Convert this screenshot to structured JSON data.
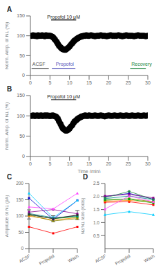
{
  "chart_data": [
    {
      "type": "scatter",
      "title": "A",
      "ylabel": "Norm. Amp. of N1 (%)",
      "xlim": [
        0,
        30
      ],
      "xticks": [
        0,
        5,
        10,
        15,
        20,
        25,
        30
      ],
      "ylim": [
        0,
        150
      ],
      "yticks": [
        0,
        50,
        100,
        150
      ],
      "series": [
        {
          "color": "#000000",
          "x": [
            0.3,
            0.7,
            1.0,
            1.3,
            1.7,
            2.0,
            2.3,
            2.7,
            3.0,
            3.3,
            3.7,
            4.0,
            4.3,
            4.7,
            5.0
          ],
          "values": [
            100,
            101,
            100,
            100,
            99,
            101,
            100,
            100,
            101,
            100,
            99,
            101,
            100,
            100,
            100
          ]
        },
        {
          "color": "#000000",
          "x": [
            5.3,
            5.7,
            6.0,
            6.3,
            6.7,
            7.0,
            7.3,
            7.7,
            8.0,
            8.3,
            8.7,
            9.0,
            9.3,
            9.7,
            10.0,
            10.3,
            10.7,
            11.0,
            11.3,
            11.7,
            12.0
          ],
          "values": [
            99,
            97,
            94,
            90,
            85,
            80,
            75,
            71,
            68,
            66,
            65,
            65,
            67,
            70,
            73,
            77,
            81,
            85,
            88,
            91,
            93
          ]
        },
        {
          "color": "#000000",
          "x": [
            12.3,
            12.7,
            13.0,
            13.3,
            13.7,
            14.0,
            14.3,
            14.7,
            15.0,
            15.5,
            16.0,
            16.5,
            17.0,
            17.5,
            18.0,
            18.5,
            19.0,
            19.5,
            20.0,
            20.5,
            21.0,
            21.5,
            22.0,
            22.5,
            23.0,
            23.5,
            24.0,
            24.5,
            25.0,
            25.5,
            26.0,
            26.5,
            27.0,
            27.5,
            28.0,
            28.5,
            29.0,
            29.5,
            30.0
          ],
          "values": [
            95,
            97,
            98,
            99,
            100,
            100,
            101,
            100,
            100,
            101,
            100,
            99,
            100,
            100,
            101,
            100,
            100,
            99,
            100,
            101,
            100,
            100,
            100,
            101,
            100,
            99,
            100,
            101,
            100,
            100,
            100,
            99,
            100,
            101,
            100,
            100,
            100,
            99,
            100
          ]
        }
      ],
      "lines": [
        {
          "x": [
            5.3,
            11.7
          ],
          "y": 140,
          "color": "#333333"
        },
        {
          "x": [
            0.3,
            4.7
          ],
          "y": 18,
          "color": "#555555"
        },
        {
          "x": [
            5.5,
            11.5
          ],
          "y": 18,
          "color": "#5555bb"
        },
        {
          "x": [
            25.5,
            29.5
          ],
          "y": 18,
          "color": "#228844"
        }
      ],
      "annotations": [
        {
          "text": "Propofol 10 μM",
          "x": 8.5,
          "y": 143,
          "color": "#222222",
          "align": "center"
        },
        {
          "text": "ACSF",
          "x": 0.5,
          "y": 25,
          "color": "#555555",
          "align": "left"
        },
        {
          "text": "Propofol",
          "x": 6.5,
          "y": 25,
          "color": "#5555bb",
          "align": "left"
        },
        {
          "text": "Recovery",
          "x": 25.8,
          "y": 25,
          "color": "#228844",
          "align": "left"
        }
      ]
    },
    {
      "type": "scatter",
      "title": "B",
      "ylabel": "Norm. Amp. of N1 (%)",
      "xlabel": "Time (min)",
      "xlim": [
        0,
        30
      ],
      "xticks": [
        0,
        5,
        10,
        15,
        20,
        25,
        30
      ],
      "ylim": [
        0,
        150
      ],
      "yticks": [
        0,
        50,
        100,
        150
      ],
      "series": [
        {
          "color": "#000000",
          "x": [
            0.3,
            0.7,
            1.0,
            1.3,
            1.7,
            2.0,
            2.3,
            2.7,
            3.0,
            3.3,
            3.7,
            4.0,
            4.3,
            4.7,
            5.0,
            5.3,
            5.7,
            6.0,
            6.3,
            6.7,
            7.0,
            7.3,
            7.7,
            8.0,
            8.3,
            8.7,
            9.0,
            9.3,
            9.7,
            10.0,
            10.3,
            10.7,
            11.0,
            11.3,
            11.7,
            12.0,
            12.3,
            12.7,
            13.0,
            13.3,
            13.7,
            14.0,
            14.3,
            14.7,
            15.0,
            15.5,
            16.0,
            16.5,
            17.0,
            17.5,
            18.0,
            18.5,
            19.0,
            19.5,
            20.0,
            20.5,
            21.0,
            21.5,
            22.0,
            22.5,
            23.0,
            23.5,
            24.0,
            24.5,
            25.0,
            25.5,
            26.0,
            26.5,
            27.0,
            27.5,
            28.0,
            28.5,
            29.0,
            29.5,
            30.0
          ],
          "values": [
            100,
            101,
            100,
            100,
            101,
            100,
            100,
            101,
            100,
            100,
            101,
            100,
            101,
            100,
            100,
            100,
            101,
            100,
            99,
            97,
            93,
            87,
            80,
            74,
            69,
            66,
            64,
            64,
            66,
            69,
            73,
            77,
            82,
            86,
            89,
            92,
            94,
            96,
            98,
            99,
            100,
            101,
            100,
            100,
            101,
            100,
            100,
            101,
            100,
            100,
            101,
            100,
            99,
            100,
            101,
            100,
            100,
            101,
            100,
            100,
            101,
            100,
            100,
            101,
            100,
            100,
            101,
            100,
            100,
            101,
            100,
            100,
            101,
            100,
            101
          ]
        }
      ],
      "lines": [
        {
          "x": [
            5.3,
            11.7
          ],
          "y": 140,
          "color": "#333333"
        }
      ],
      "annotations": [
        {
          "text": "Propofol 10 μM",
          "x": 8.5,
          "y": 143,
          "color": "#222222",
          "align": "center"
        }
      ]
    },
    {
      "type": "line",
      "title": "C",
      "ylabel": "Amplitude of N1 (pA)",
      "categories": [
        "ACSF",
        "Propofol",
        "Wash"
      ],
      "ylim": [
        0,
        200
      ],
      "yticks": [
        0,
        50,
        100,
        150,
        200
      ],
      "series": [
        {
          "color": "#ff0000",
          "marker": "square",
          "values": [
            67,
            47,
            67
          ]
        },
        {
          "color": "#ff8800",
          "marker": "square",
          "values": [
            100,
            88,
            95
          ]
        },
        {
          "color": "#888800",
          "marker": "square",
          "values": [
            103,
            85,
            92
          ]
        },
        {
          "color": "#00aa00",
          "marker": "square",
          "values": [
            105,
            92,
            98
          ]
        },
        {
          "color": "#008888",
          "marker": "square",
          "values": [
            108,
            95,
            100
          ]
        },
        {
          "color": "#0000cc",
          "marker": "square",
          "values": [
            155,
            90,
            148
          ]
        },
        {
          "color": "#880088",
          "marker": "square",
          "values": [
            112,
            120,
            107
          ]
        },
        {
          "color": "#ff44ff",
          "marker": "triangle",
          "values": [
            128,
            122,
            170
          ]
        },
        {
          "color": "#00ccff",
          "marker": "triangle",
          "values": [
            170,
            95,
            148
          ]
        },
        {
          "color": "#333333",
          "marker": "square",
          "values": [
            105,
            92,
            103
          ],
          "errors": [
            14,
            9,
            14
          ]
        }
      ]
    },
    {
      "type": "line",
      "title": "D",
      "ylabel": "N2/N1 ratio (folds)",
      "categories": [
        "ACSF",
        "Propofol",
        "Wash"
      ],
      "ylim": [
        0,
        2.5
      ],
      "yticks": [
        0.5,
        {
          "value": 1,
          "label": "1.0"
        },
        1.5,
        {
          "value": 2,
          "label": "2.0"
        },
        2.5
      ],
      "series": [
        {
          "color": "#ff0000",
          "marker": "square",
          "values": [
            1.78,
            1.8,
            1.68
          ]
        },
        {
          "color": "#ff8800",
          "marker": "square",
          "values": [
            1.82,
            1.85,
            1.78
          ]
        },
        {
          "color": "#888800",
          "marker": "square",
          "values": [
            1.85,
            1.92,
            1.8
          ]
        },
        {
          "color": "#00aa00",
          "marker": "square",
          "values": [
            1.88,
            1.9,
            1.75
          ]
        },
        {
          "color": "#008888",
          "marker": "square",
          "values": [
            1.92,
            2.02,
            1.88
          ]
        },
        {
          "color": "#0000cc",
          "marker": "square",
          "values": [
            2.0,
            2.12,
            1.9
          ]
        },
        {
          "color": "#880088",
          "marker": "square",
          "values": [
            2.02,
            2.08,
            1.95
          ]
        },
        {
          "color": "#ff44ff",
          "marker": "triangle",
          "values": [
            1.52,
            2.02,
            1.8
          ]
        },
        {
          "color": "#00ccff",
          "marker": "triangle",
          "values": [
            1.3,
            1.42,
            1.3
          ]
        },
        {
          "color": "#228844",
          "marker": "square",
          "values": [
            1.95,
            2.2,
            1.88
          ]
        }
      ]
    }
  ]
}
